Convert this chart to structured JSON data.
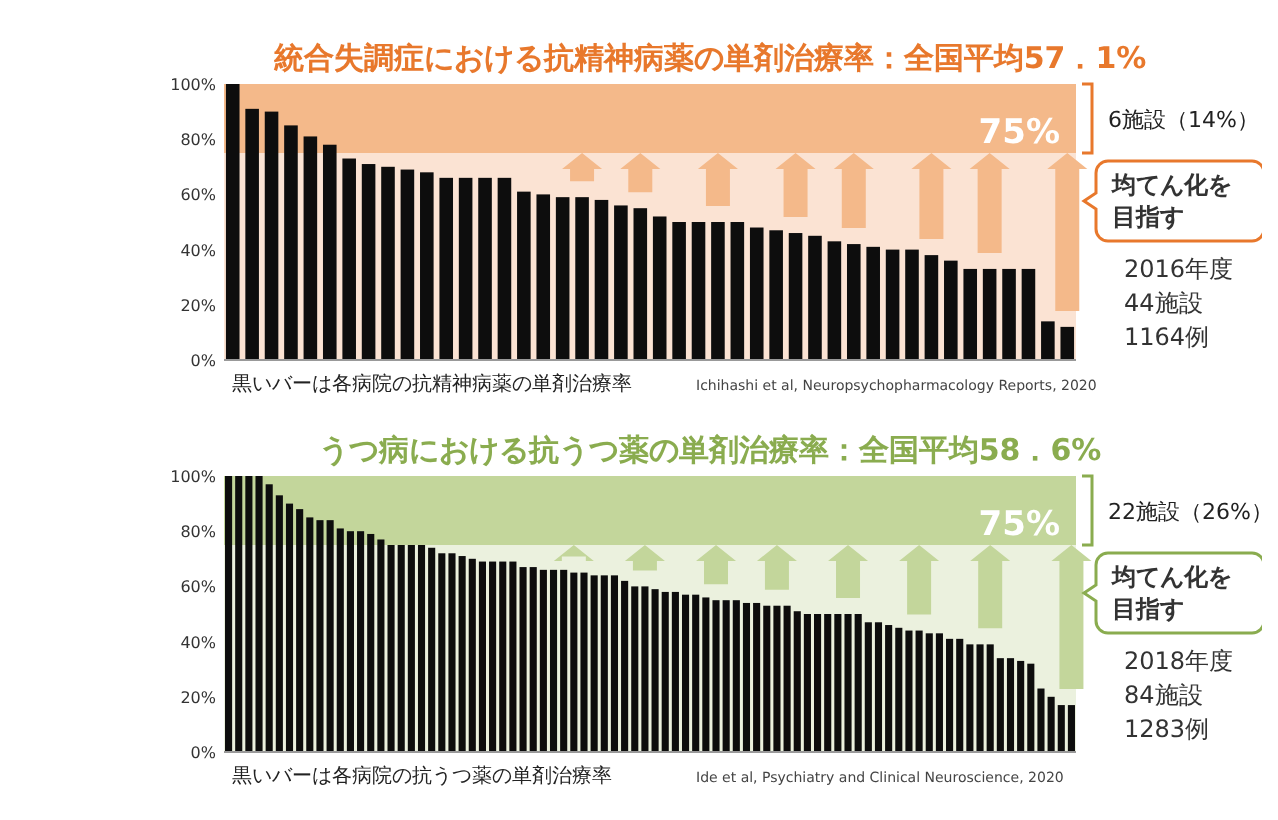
{
  "chart_data": [
    {
      "type": "bar",
      "title": "統合失調症における抗精神病薬の単剤治療率：全国平均57．1%",
      "categories": [
        null,
        null,
        null,
        null,
        null,
        null,
        null,
        null,
        null,
        null,
        null,
        null,
        null,
        null,
        null,
        null,
        null,
        null,
        null,
        null,
        null,
        null,
        null,
        null,
        null,
        null,
        null,
        null,
        null,
        null,
        null,
        null,
        null,
        null,
        null,
        null,
        null,
        null,
        null,
        null,
        null,
        null,
        null,
        null
      ],
      "values": [
        100,
        91,
        90,
        85,
        81,
        78,
        73,
        71,
        70,
        69,
        68,
        66,
        66,
        66,
        66,
        61,
        60,
        59,
        59,
        58,
        56,
        55,
        52,
        50,
        50,
        50,
        50,
        48,
        47,
        46,
        45,
        43,
        42,
        41,
        40,
        40,
        38,
        36,
        33,
        33,
        33,
        33,
        14,
        12
      ],
      "color": "#0d0d0d",
      "ylim": [
        0,
        100
      ],
      "yticks": [
        {
          "value": 0,
          "label": "0%"
        },
        {
          "value": 20,
          "label": "20%"
        },
        {
          "value": 40,
          "label": "40%"
        },
        {
          "value": 60,
          "label": "60%"
        },
        {
          "value": 80,
          "label": "80%"
        },
        {
          "value": 100,
          "label": "100%"
        }
      ],
      "bands": [
        {
          "axis": "y",
          "from": 75,
          "to": 100,
          "label": "75%",
          "color": "#f4b98a"
        },
        {
          "axis": "y",
          "from": 0,
          "to": 75,
          "color": "#fbe3d3"
        }
      ],
      "annotations": [
        "6施設（14%）",
        "均てん化を目指す",
        "2016年度",
        "44施設",
        "1164例",
        "黒いバーは各病院の抗精神病薬の単剤治療率",
        "Ichihashi et al, Neuropsychopharmacology Reports, 2020"
      ]
    },
    {
      "type": "bar",
      "title": "うつ病における抗うつ薬の単剤治療率：全国平均58．6%",
      "categories": [
        null,
        null,
        null,
        null,
        null,
        null,
        null,
        null,
        null,
        null,
        null,
        null,
        null,
        null,
        null,
        null,
        null,
        null,
        null,
        null,
        null,
        null,
        null,
        null,
        null,
        null,
        null,
        null,
        null,
        null,
        null,
        null,
        null,
        null,
        null,
        null,
        null,
        null,
        null,
        null,
        null,
        null,
        null,
        null,
        null,
        null,
        null,
        null,
        null,
        null,
        null,
        null,
        null,
        null,
        null,
        null,
        null,
        null,
        null,
        null,
        null,
        null,
        null,
        null,
        null,
        null,
        null,
        null,
        null,
        null,
        null,
        null,
        null,
        null,
        null,
        null,
        null,
        null,
        null,
        null,
        null,
        null,
        null,
        null
      ],
      "values": [
        100,
        100,
        100,
        100,
        97,
        93,
        90,
        88,
        85,
        84,
        84,
        81,
        80,
        80,
        79,
        77,
        75,
        75,
        75,
        75,
        74,
        72,
        72,
        71,
        70,
        69,
        69,
        69,
        69,
        67,
        67,
        66,
        66,
        66,
        65,
        65,
        64,
        64,
        64,
        62,
        60,
        60,
        59,
        58,
        58,
        57,
        57,
        56,
        55,
        55,
        55,
        54,
        54,
        53,
        53,
        53,
        51,
        50,
        50,
        50,
        50,
        50,
        50,
        47,
        47,
        46,
        45,
        44,
        44,
        43,
        43,
        41,
        41,
        39,
        39,
        39,
        34,
        34,
        33,
        32,
        23,
        20,
        17,
        17
      ],
      "color": "#0d0d0d",
      "ylim": [
        0,
        100
      ],
      "yticks": [
        {
          "value": 0,
          "label": "0%"
        },
        {
          "value": 20,
          "label": "20%"
        },
        {
          "value": 40,
          "label": "40%"
        },
        {
          "value": 60,
          "label": "60%"
        },
        {
          "value": 80,
          "label": "80%"
        },
        {
          "value": 100,
          "label": "100%"
        }
      ],
      "bands": [
        {
          "axis": "y",
          "from": 75,
          "to": 100,
          "label": "75%",
          "color": "#c3d69b"
        },
        {
          "axis": "y",
          "from": 0,
          "to": 75,
          "color": "#ebf1de"
        }
      ],
      "annotations": [
        "22施設（26%）",
        "均てん化を目指す",
        "2018年度",
        "84施設",
        "1283例",
        "黒いバーは各病院の抗うつ薬の単剤治療率",
        "Ide et al, Psychiatry and Clinical Neuroscience, 2020"
      ]
    }
  ]
}
